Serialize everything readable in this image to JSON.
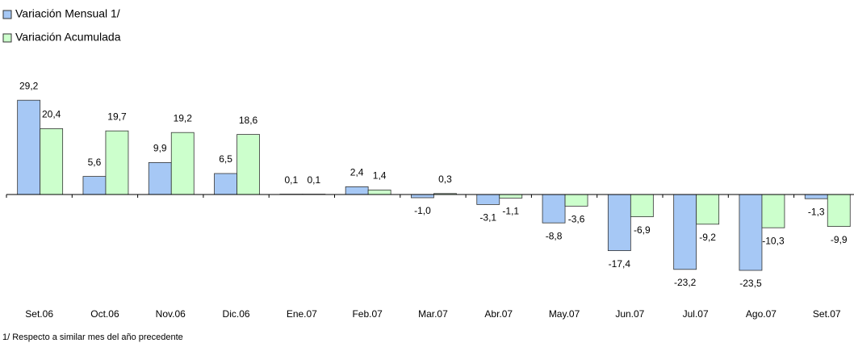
{
  "chart_data": {
    "type": "bar",
    "categories": [
      "Set.06",
      "Oct.06",
      "Nov.06",
      "Dic.06",
      "Ene.07",
      "Feb.07",
      "Mar.07",
      "Abr.07",
      "May.07",
      "Jun.07",
      "Jul.07",
      "Ago.07",
      "Set.07"
    ],
    "series": [
      {
        "name": "Variación Mensual 1/",
        "color": "#a6c8f5",
        "values": [
          29.2,
          5.6,
          9.9,
          6.5,
          0.1,
          2.4,
          -1.0,
          -3.1,
          -8.8,
          -17.4,
          -23.2,
          -23.5,
          -1.3
        ],
        "value_labels": [
          "29,2",
          "5,6",
          "9,9",
          "6,5",
          "0,1",
          "2,4",
          "-1,0",
          "-3,1",
          "-8,8",
          "-17,4",
          "-23,2",
          "-23,5",
          "-1,3"
        ]
      },
      {
        "name": "Variación Acumulada",
        "color": "#ccffcc",
        "values": [
          20.4,
          19.7,
          19.2,
          18.6,
          0.1,
          1.4,
          0.3,
          -1.1,
          -3.6,
          -6.9,
          -9.2,
          -10.3,
          -9.9
        ],
        "value_labels": [
          "20,4",
          "19,7",
          "19,2",
          "18,6",
          "0,1",
          "1,4",
          "0,3",
          "-1,1",
          "-3,6",
          "-6,9",
          "-9,2",
          "-10,3",
          "-9,9"
        ]
      }
    ],
    "ylim": [
      -26,
      36
    ],
    "legend": "top-left",
    "footnote": "1/ Respecto a similar mes del año precedente"
  }
}
